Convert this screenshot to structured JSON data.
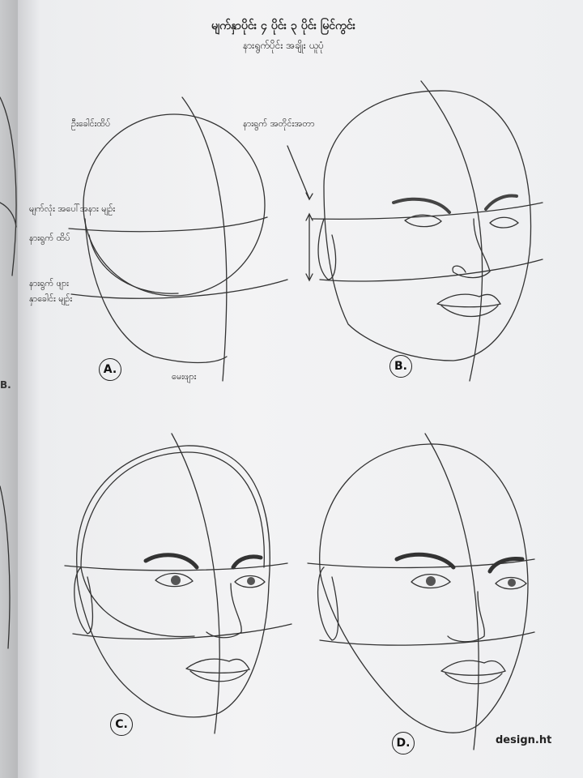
{
  "header": {
    "title": "မျက်နှာပိုင်း ၄ ပိုင်း ၃ ပိုင်း မြင်ကွင်း",
    "subtitle": "နားရွက်ပိုင်း အချိုး ယူပုံ"
  },
  "labels": {
    "a_top": "ဦးခေါင်းထိပ်",
    "a_eye": "မျက်လုံး အပေါ်အနား မျဉ်း",
    "a_ear_top": "နားရွက် ထိပ်",
    "a_ear_bottom": "နားရွက် ဖျား",
    "a_nose": "နှာခေါင်း မျဉ်း",
    "a_chin": "မေးဖျား",
    "b_ear": "နားရွက် အတိုင်းအတာ"
  },
  "figures": {
    "a": "A.",
    "b": "B.",
    "c": "C.",
    "d": "D."
  },
  "edge_letter": "B.",
  "watermark": "design.ht"
}
